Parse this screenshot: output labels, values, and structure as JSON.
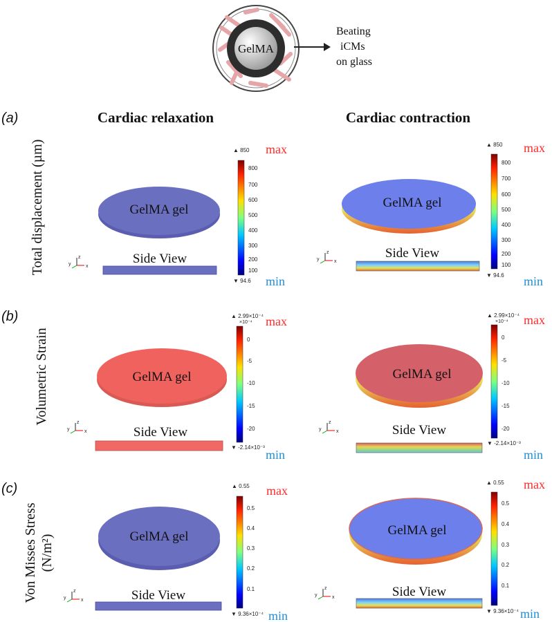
{
  "header": {
    "core_label": "GelMA",
    "arrow_label_lines": [
      "Beating",
      "iCMs",
      "on glass"
    ]
  },
  "columns": {
    "left": "Cardiac relaxation",
    "right": "Cardiac contraction"
  },
  "common": {
    "gel_label": "GelMA gel",
    "side_view": "Side View",
    "max_label": "max",
    "min_label": "min",
    "axis_triad": {
      "z": "z",
      "y": "y",
      "x": "x"
    }
  },
  "panels": [
    {
      "letter": "(a)",
      "ylabel_lines": [
        "Total displacement (µm)"
      ],
      "scale": {
        "top": "▲ 850",
        "exp": "",
        "bottom": "▼ 94.6",
        "ticks": [
          "800",
          "700",
          "600",
          "500",
          "400",
          "300",
          "200",
          "100"
        ]
      }
    },
    {
      "letter": "(b)",
      "ylabel_lines": [
        "Volumetric Strain"
      ],
      "scale": {
        "top": "▲ 2.99×10⁻⁴",
        "exp": "×10⁻⁴",
        "bottom": "▼ -2.14×10⁻³",
        "ticks": [
          "0",
          "-5",
          "-10",
          "-15",
          "-20"
        ]
      }
    },
    {
      "letter": "(c)",
      "ylabel_lines": [
        "Von Misses Stress",
        "(N/m²)"
      ],
      "scale": {
        "top": "▲ 0.55",
        "exp": "",
        "bottom": "▼ 9.36×10⁻⁴",
        "ticks": [
          "0.5",
          "0.4",
          "0.3",
          "0.2",
          "0.1"
        ]
      }
    }
  ],
  "colors": {
    "uniform_blue": "#6b6fc0",
    "contraction_blue": "#6c7fea",
    "relax_red": "#f0625d",
    "contract_red": "#d4616a",
    "max_red": "#ff2a2a",
    "min_blue": "#1f8fd6"
  }
}
